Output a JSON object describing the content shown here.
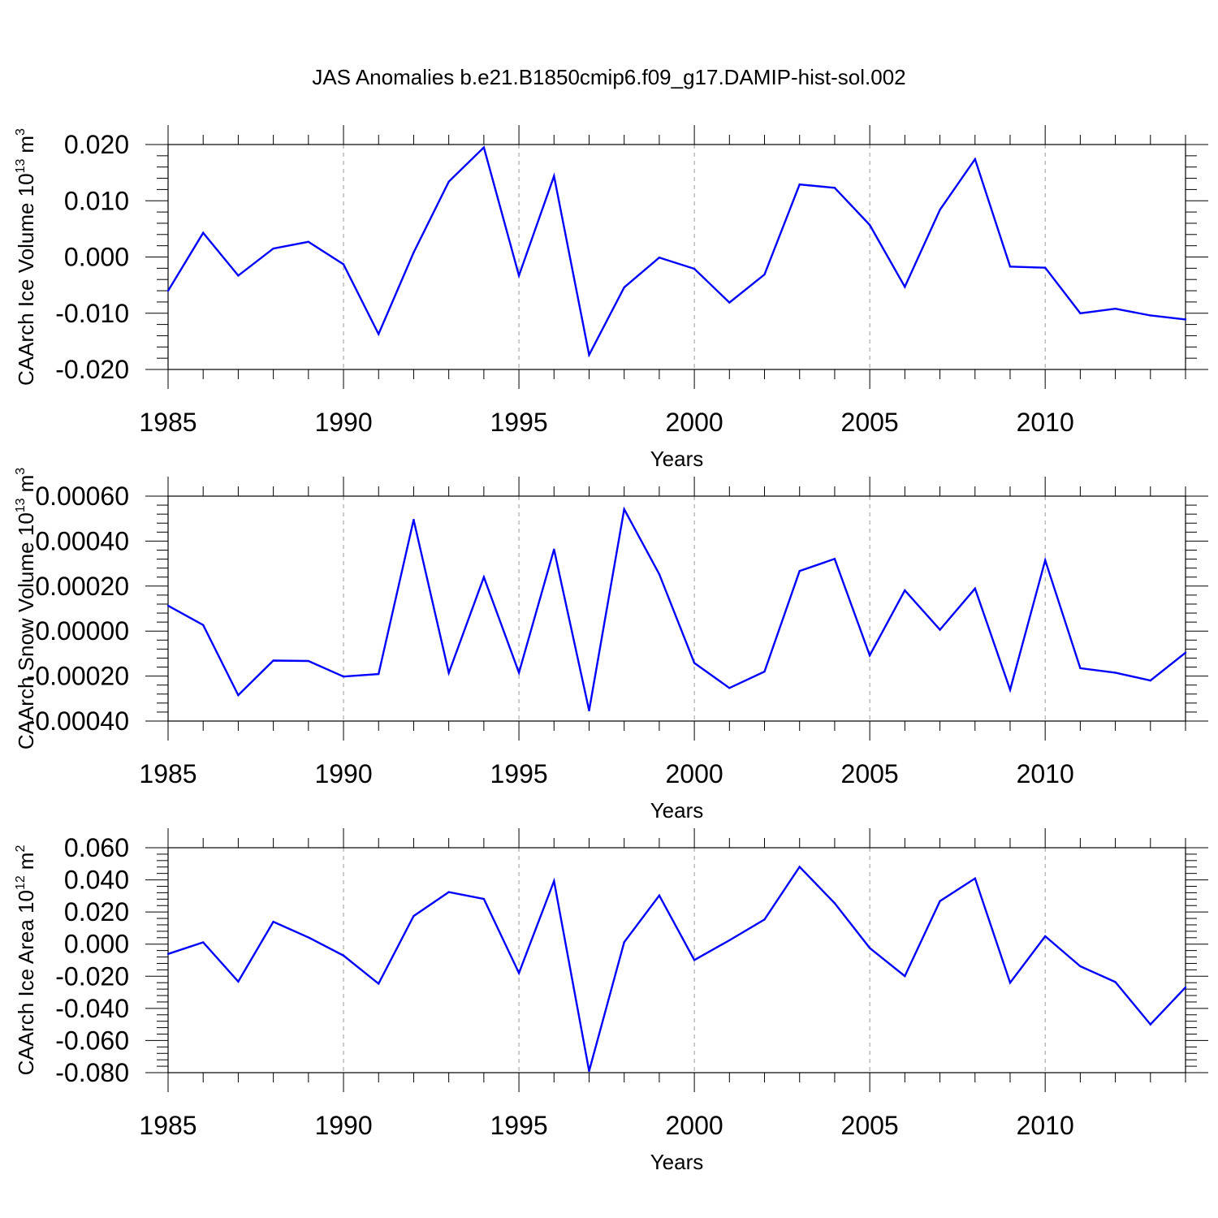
{
  "title": "JAS Anomalies b.e21.B1850cmip6.f09_g17.DAMIP-hist-sol.002",
  "colors": {
    "line": "#0000ff",
    "axis": "#000000",
    "grid": "#999999"
  },
  "chart_data": [
    {
      "type": "line",
      "ylabel": "CAArch Ice Volume",
      "yunit_base": "10",
      "yunit_exp": "13",
      "yunit_unit": "m",
      "yunit_unit_exp": "3",
      "xlabel": "Years",
      "xlim": [
        1985,
        2014
      ],
      "ylim": [
        -0.02,
        0.02
      ],
      "xticks": [
        1985,
        1990,
        1995,
        2000,
        2005,
        2010
      ],
      "xtick_labels": [
        "1985",
        "1990",
        "1995",
        "2000",
        "2005",
        "2010"
      ],
      "yticks": [
        -0.02,
        -0.01,
        0.0,
        0.01,
        0.02
      ],
      "ytick_labels": [
        "-0.020",
        "-0.010",
        "0.000",
        "0.010",
        "0.020"
      ],
      "vgrid": [
        1990,
        1995,
        2000,
        2005,
        2010
      ],
      "x": [
        1985,
        1986,
        1987,
        1988,
        1989,
        1990,
        1991,
        1992,
        1993,
        1994,
        1995,
        1996,
        1997,
        1998,
        1999,
        2000,
        2001,
        2002,
        2003,
        2004,
        2005,
        2006,
        2007,
        2008,
        2009,
        2010,
        2011,
        2012,
        2013,
        2014
      ],
      "values": [
        -0.006,
        0.0043,
        -0.0033,
        0.0015,
        0.0027,
        -0.0013,
        -0.0137,
        0.0008,
        0.0134,
        0.0195,
        -0.0033,
        0.0144,
        -0.0174,
        -0.0054,
        -0.0001,
        -0.0021,
        -0.0081,
        -0.0031,
        0.0129,
        0.0123,
        0.0057,
        -0.0053,
        0.0084,
        0.0174,
        -0.0017,
        -0.0019,
        -0.01,
        -0.0092,
        -0.0104,
        -0.0111
      ]
    },
    {
      "type": "line",
      "ylabel": "CAArch Snow Volume",
      "yunit_base": "10",
      "yunit_exp": "13",
      "yunit_unit": "m",
      "yunit_unit_exp": "3",
      "xlabel": "Years",
      "xlim": [
        1985,
        2014
      ],
      "ylim": [
        -0.0004,
        0.0006
      ],
      "xticks": [
        1985,
        1990,
        1995,
        2000,
        2005,
        2010
      ],
      "xtick_labels": [
        "1985",
        "1990",
        "1995",
        "2000",
        "2005",
        "2010"
      ],
      "yticks": [
        -0.0004,
        -0.0002,
        0.0,
        0.0002,
        0.0004,
        0.0006
      ],
      "ytick_labels": [
        "-0.00040",
        "-0.00020",
        "0.00000",
        "0.00020",
        "0.00040",
        "0.00060"
      ],
      "vgrid": [
        1990,
        1995,
        2000,
        2005,
        2010
      ],
      "x": [
        1985,
        1986,
        1987,
        1988,
        1989,
        1990,
        1991,
        1992,
        1993,
        1994,
        1995,
        1996,
        1997,
        1998,
        1999,
        2000,
        2001,
        2002,
        2003,
        2004,
        2005,
        2006,
        2007,
        2008,
        2009,
        2010,
        2011,
        2012,
        2013,
        2014
      ],
      "values": [
        0.000113,
        2.7e-05,
        -0.000285,
        -0.000131,
        -0.000133,
        -0.000202,
        -0.000191,
        0.000495,
        -0.000186,
        0.00024,
        -0.000185,
        0.000363,
        -0.000353,
        0.000542,
        0.000253,
        -0.000142,
        -0.000253,
        -0.00018,
        0.000267,
        0.000321,
        -0.000108,
        0.000181,
        6e-06,
        0.000189,
        -0.000261,
        0.000315,
        -0.000165,
        -0.000185,
        -0.00022,
        -9.6e-05
      ]
    },
    {
      "type": "line",
      "ylabel": "CAArch Ice Area",
      "yunit_base": "10",
      "yunit_exp": "12",
      "yunit_unit": "m",
      "yunit_unit_exp": "2",
      "xlabel": "Years",
      "xlim": [
        1985,
        2014
      ],
      "ylim": [
        -0.08,
        0.06
      ],
      "xticks": [
        1985,
        1990,
        1995,
        2000,
        2005,
        2010
      ],
      "xtick_labels": [
        "1985",
        "1990",
        "1995",
        "2000",
        "2005",
        "2010"
      ],
      "yticks": [
        -0.08,
        -0.06,
        -0.04,
        -0.02,
        0.0,
        0.02,
        0.04,
        0.06
      ],
      "ytick_labels": [
        "-0.080",
        "-0.060",
        "-0.040",
        "-0.020",
        "0.000",
        "0.020",
        "0.040",
        "0.060"
      ],
      "vgrid": [
        1990,
        1995,
        2000,
        2005,
        2010
      ],
      "x": [
        1985,
        1986,
        1987,
        1988,
        1989,
        1990,
        1991,
        1992,
        1993,
        1994,
        1995,
        1996,
        1997,
        1998,
        1999,
        2000,
        2001,
        2002,
        2003,
        2004,
        2005,
        2006,
        2007,
        2008,
        2009,
        2010,
        2011,
        2012,
        2013,
        2014
      ],
      "values": [
        -0.0061,
        0.0011,
        -0.0233,
        0.0139,
        0.0042,
        -0.0071,
        -0.0246,
        0.0175,
        0.0324,
        0.0281,
        -0.018,
        0.0393,
        -0.079,
        0.0012,
        0.0303,
        -0.0099,
        0.0024,
        0.0153,
        0.0481,
        0.0255,
        -0.0024,
        -0.0199,
        0.0268,
        0.0409,
        -0.024,
        0.0049,
        -0.0138,
        -0.0236,
        -0.05,
        -0.0269
      ]
    }
  ]
}
